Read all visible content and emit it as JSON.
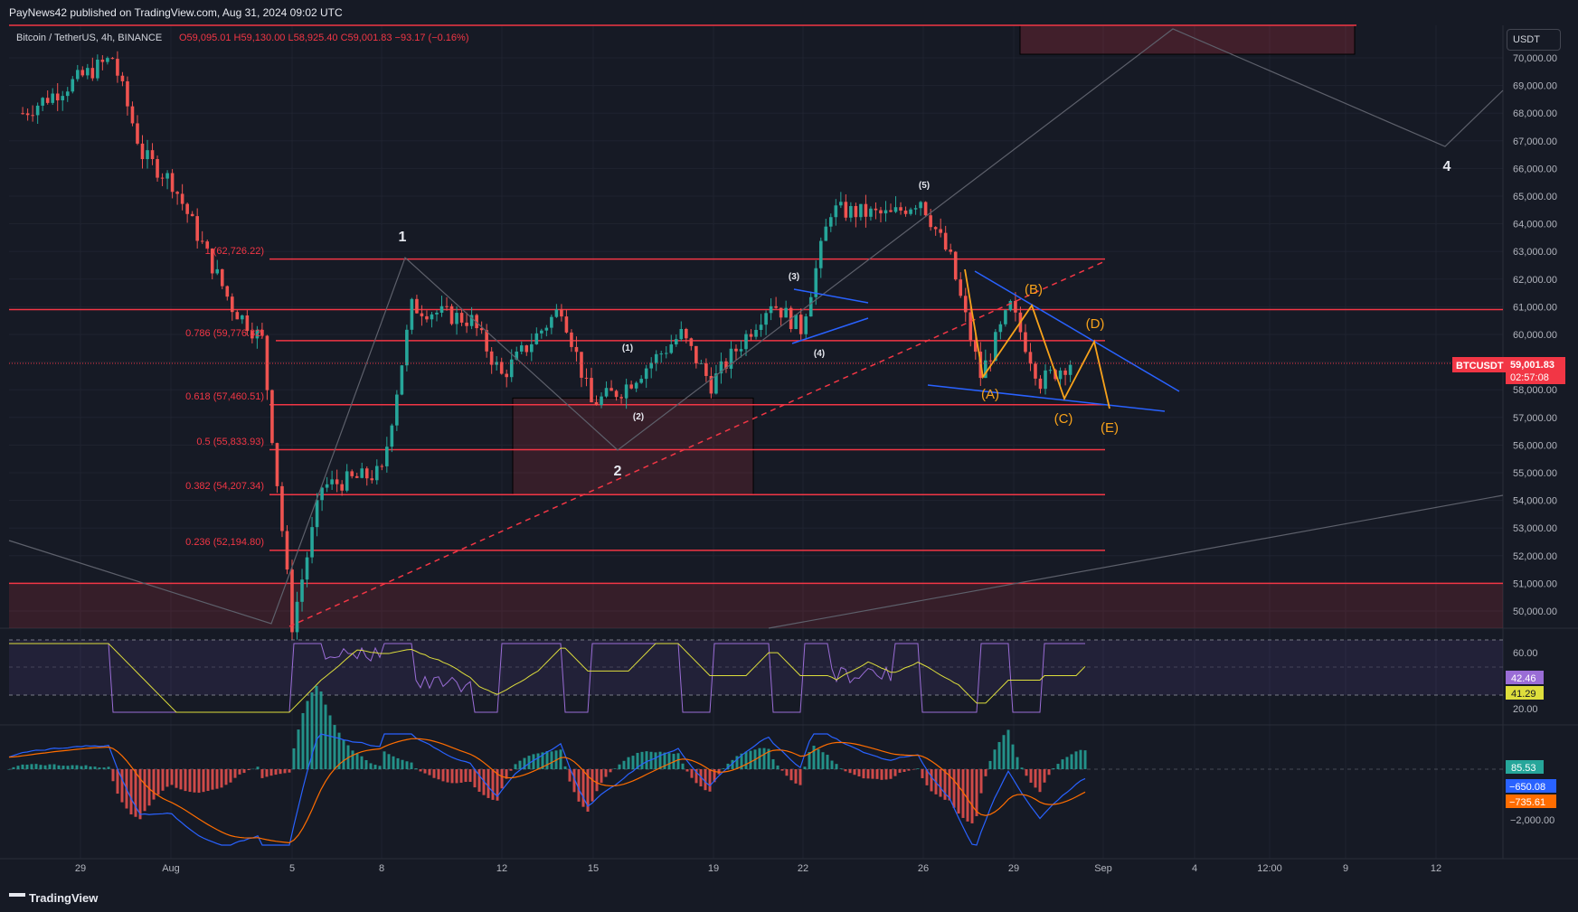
{
  "header": {
    "published": "PayNews42 published on TradingView.com, Aug 31, 2024 09:02 UTC",
    "symbol_title": "Bitcoin / TetherUS, 4h, BINANCE",
    "ohlc": "O59,095.01 H59,130.00 L58,925.40 C59,001.83 −93.17 (−0.16%)"
  },
  "currency_button": "USDT",
  "footer": {
    "brand": "TradingView"
  },
  "colors": {
    "background": "#161a25",
    "up": "#26a69a",
    "down": "#ef5350",
    "fib": "#f23645",
    "pattern_orange": "#f7a21b",
    "trend_blue": "#2962ff",
    "rsi": "#9a6dd6",
    "rsi_ma": "#dede3c",
    "macd": "#2962ff",
    "signal": "#ff6d00"
  },
  "price_axis": {
    "ticks": [
      "70,000.00",
      "69,000.00",
      "68,000.00",
      "67,000.00",
      "66,000.00",
      "65,000.00",
      "64,000.00",
      "63,000.00",
      "62,000.00",
      "61,000.00",
      "60,000.00",
      "59,000.00",
      "58,000.00",
      "57,000.00",
      "56,000.00",
      "55,000.00",
      "54,000.00",
      "53,000.00",
      "52,000.00",
      "51,000.00",
      "50,000.00"
    ],
    "current_symbol": "BTCUSDT",
    "current_price": "59,001.83",
    "countdown": "02:57:08"
  },
  "time_axis": [
    "29",
    "Aug",
    "5",
    "8",
    "12",
    "15",
    "19",
    "22",
    "26",
    "29",
    "Sep",
    "4",
    "12:00",
    "9",
    "12"
  ],
  "fib_levels": [
    {
      "label": "1 (62,726.22)",
      "price": 62726.22
    },
    {
      "label": "0.786 (59,776.32)",
      "price": 59776.32
    },
    {
      "label": "0.618 (57,460.51)",
      "price": 57460.51
    },
    {
      "label": "0.5 (55,833.93)",
      "price": 55833.93
    },
    {
      "label": "0.382 (54,207.34)",
      "price": 54207.34
    },
    {
      "label": "0.236 (52,194.80)",
      "price": 52194.8
    }
  ],
  "wave_labels": {
    "major": [
      "1",
      "2",
      "4"
    ],
    "minor": [
      "(1)",
      "(2)",
      "(3)",
      "(4)",
      "(5)"
    ],
    "triangle": [
      "(A)",
      "(B)",
      "(C)",
      "(D)",
      "(E)"
    ]
  },
  "rsi": {
    "ticks": [
      "60.00",
      "20.00"
    ],
    "value": "42.46",
    "ma": "41.29"
  },
  "macd": {
    "ticks": [
      "−2,000.00"
    ],
    "hist": "85.53",
    "macd": "−650.08",
    "signal": "−735.61"
  },
  "chart_data": {
    "type": "candlestick",
    "symbol": "BTCUSDT",
    "timeframe": "4h",
    "exchange": "BINANCE",
    "last": {
      "open": 59095.01,
      "high": 59130.0,
      "low": 58925.4,
      "close": 59001.83,
      "change": -93.17,
      "change_pct": -0.16
    },
    "ylim": [
      49400,
      70400
    ],
    "swings": [
      {
        "date": "Jul 27",
        "price": 68000
      },
      {
        "date": "Jul 30",
        "price": 70000
      },
      {
        "date": "Jul 31",
        "price": 66500
      },
      {
        "date": "Aug 1",
        "price": 65500
      },
      {
        "date": "Aug 3",
        "price": 61000
      },
      {
        "date": "Aug 4",
        "price": 59800
      },
      {
        "date": "Aug 5",
        "price": 49500
      },
      {
        "date": "Aug 6",
        "price": 54500
      },
      {
        "date": "Aug 8",
        "price": 55000
      },
      {
        "date": "Aug 9",
        "price": 61000
      },
      {
        "date": "Aug 11",
        "price": 60500
      },
      {
        "date": "Aug 12",
        "price": 58500
      },
      {
        "date": "Aug 14",
        "price": 61000
      },
      {
        "date": "Aug 15",
        "price": 57500
      },
      {
        "date": "Aug 16",
        "price": 58000
      },
      {
        "date": "Aug 18",
        "price": 60000
      },
      {
        "date": "Aug 19",
        "price": 58200
      },
      {
        "date": "Aug 21",
        "price": 61200
      },
      {
        "date": "Aug 22",
        "price": 60200
      },
      {
        "date": "Aug 23",
        "price": 64500
      },
      {
        "date": "Aug 25",
        "price": 64300
      },
      {
        "date": "Aug 26",
        "price": 64900
      },
      {
        "date": "Aug 27",
        "price": 62700
      },
      {
        "date": "Aug 28",
        "price": 58500
      },
      {
        "date": "Aug 29",
        "price": 61000
      },
      {
        "date": "Aug 30",
        "price": 58300
      },
      {
        "date": "Aug 31",
        "price": 59000
      }
    ]
  }
}
